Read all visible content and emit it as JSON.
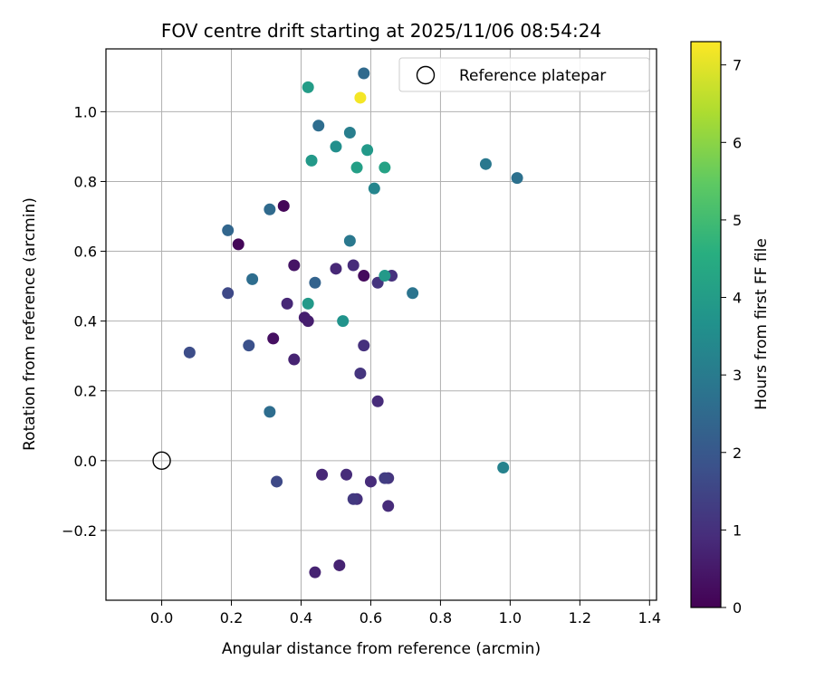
{
  "chart_data": {
    "type": "scatter",
    "title": "FOV centre drift starting at 2025/11/06 08:54:24",
    "xlabel": "Angular distance from reference (arcmin)",
    "ylabel": "Rotation from reference (arcmin)",
    "xlim": [
      -0.16,
      1.42
    ],
    "ylim": [
      -0.4,
      1.18
    ],
    "xticks": [
      0.0,
      0.2,
      0.4,
      0.6,
      0.8,
      1.0,
      1.2,
      1.4
    ],
    "xtick_labels": [
      "0.0",
      "0.2",
      "0.4",
      "0.6",
      "0.8",
      "1.0",
      "1.2",
      "1.4"
    ],
    "yticks": [
      -0.2,
      0.0,
      0.2,
      0.4,
      0.6,
      0.8,
      1.0
    ],
    "ytick_labels": [
      "−0.2",
      "0.0",
      "0.2",
      "0.4",
      "0.6",
      "0.8",
      "1.0"
    ],
    "grid": true,
    "colormap": "viridis",
    "colorbar": {
      "label": "Hours from first FF file",
      "range": [
        0,
        7.3
      ],
      "ticks": [
        0,
        1,
        2,
        3,
        4,
        5,
        6,
        7
      ],
      "tick_labels": [
        "0",
        "1",
        "2",
        "3",
        "4",
        "5",
        "6",
        "7"
      ]
    },
    "reference": {
      "label": "Reference platepar",
      "x": 0.0,
      "y": 0.0
    },
    "legend": {
      "entries": [
        "Reference platepar"
      ],
      "position": "upper-right"
    },
    "points": [
      {
        "x": 0.22,
        "y": 0.62,
        "c": 0.1
      },
      {
        "x": 0.35,
        "y": 0.73,
        "c": 0.1
      },
      {
        "x": 0.58,
        "y": 0.53,
        "c": 0.2
      },
      {
        "x": 0.32,
        "y": 0.35,
        "c": 0.3
      },
      {
        "x": 0.38,
        "y": 0.56,
        "c": 0.4
      },
      {
        "x": 0.41,
        "y": 0.41,
        "c": 0.6
      },
      {
        "x": 0.42,
        "y": 0.4,
        "c": 0.6
      },
      {
        "x": 0.36,
        "y": 0.45,
        "c": 0.8
      },
      {
        "x": 0.38,
        "y": 0.29,
        "c": 0.7
      },
      {
        "x": 0.5,
        "y": 0.55,
        "c": 0.8
      },
      {
        "x": 0.55,
        "y": 0.56,
        "c": 0.9
      },
      {
        "x": 0.66,
        "y": 0.53,
        "c": 1.0
      },
      {
        "x": 0.62,
        "y": 0.51,
        "c": 1.1
      },
      {
        "x": 0.58,
        "y": 0.33,
        "c": 1.0
      },
      {
        "x": 0.57,
        "y": 0.25,
        "c": 1.1
      },
      {
        "x": 0.62,
        "y": 0.17,
        "c": 0.9
      },
      {
        "x": 0.44,
        "y": -0.32,
        "c": 0.7
      },
      {
        "x": 0.51,
        "y": -0.3,
        "c": 0.7
      },
      {
        "x": 0.46,
        "y": -0.04,
        "c": 0.8
      },
      {
        "x": 0.53,
        "y": -0.04,
        "c": 0.9
      },
      {
        "x": 0.55,
        "y": -0.11,
        "c": 1.2
      },
      {
        "x": 0.56,
        "y": -0.11,
        "c": 1.0
      },
      {
        "x": 0.6,
        "y": -0.06,
        "c": 0.9
      },
      {
        "x": 0.64,
        "y": -0.05,
        "c": 1.3
      },
      {
        "x": 0.65,
        "y": -0.05,
        "c": 1.1
      },
      {
        "x": 0.65,
        "y": -0.13,
        "c": 0.9
      },
      {
        "x": 0.33,
        "y": -0.06,
        "c": 1.6
      },
      {
        "x": 0.08,
        "y": 0.31,
        "c": 1.7
      },
      {
        "x": 0.19,
        "y": 0.48,
        "c": 1.6
      },
      {
        "x": 0.25,
        "y": 0.33,
        "c": 1.8
      },
      {
        "x": 0.19,
        "y": 0.66,
        "c": 2.4
      },
      {
        "x": 0.26,
        "y": 0.52,
        "c": 2.6
      },
      {
        "x": 0.31,
        "y": 0.72,
        "c": 2.5
      },
      {
        "x": 0.31,
        "y": 0.14,
        "c": 2.6
      },
      {
        "x": 0.44,
        "y": 0.51,
        "c": 2.3
      },
      {
        "x": 0.45,
        "y": 0.96,
        "c": 2.6
      },
      {
        "x": 0.58,
        "y": 1.11,
        "c": 2.5
      },
      {
        "x": 0.54,
        "y": 0.63,
        "c": 2.9
      },
      {
        "x": 0.72,
        "y": 0.48,
        "c": 2.8
      },
      {
        "x": 0.93,
        "y": 0.85,
        "c": 2.9
      },
      {
        "x": 1.02,
        "y": 0.81,
        "c": 2.7
      },
      {
        "x": 0.98,
        "y": -0.02,
        "c": 3.2
      },
      {
        "x": 0.54,
        "y": 0.94,
        "c": 3.1
      },
      {
        "x": 0.61,
        "y": 0.78,
        "c": 3.3
      },
      {
        "x": 0.52,
        "y": 0.4,
        "c": 3.7
      },
      {
        "x": 0.5,
        "y": 0.9,
        "c": 3.6
      },
      {
        "x": 0.42,
        "y": 0.45,
        "c": 3.9
      },
      {
        "x": 0.43,
        "y": 0.86,
        "c": 3.9
      },
      {
        "x": 0.59,
        "y": 0.89,
        "c": 3.9
      },
      {
        "x": 0.56,
        "y": 0.84,
        "c": 4.1
      },
      {
        "x": 0.64,
        "y": 0.84,
        "c": 4.2
      },
      {
        "x": 0.64,
        "y": 0.53,
        "c": 3.9
      },
      {
        "x": 0.42,
        "y": 1.07,
        "c": 4.0
      },
      {
        "x": 0.57,
        "y": 1.04,
        "c": 7.2
      }
    ]
  }
}
